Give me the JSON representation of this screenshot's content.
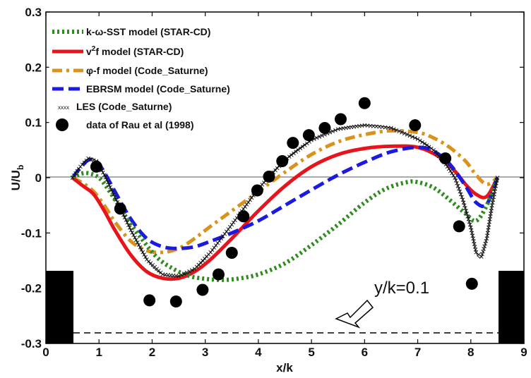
{
  "chart_data": {
    "type": "line",
    "xlabel": "x/k",
    "ylabel": "U/U",
    "ylabel_sub": "b",
    "xlim": [
      0,
      9
    ],
    "ylim": [
      -0.3,
      0.3
    ],
    "xticks": [
      "0",
      "1",
      "2",
      "3",
      "4",
      "5",
      "6",
      "7",
      "8",
      "9"
    ],
    "yticks": [
      "-0.3",
      "-0.2",
      "-0.1",
      "0",
      "0.1",
      "0.2",
      "0.3"
    ],
    "grid": false,
    "legend_position": "top-left",
    "annotation": "y/k=0.1",
    "series": [
      {
        "name": "k-ω-SST model (STAR-CD)",
        "style": "dotted",
        "color": "#2e8b1e",
        "x": [
          0.5,
          0.65,
          0.8,
          1.0,
          1.2,
          1.5,
          1.8,
          2.1,
          2.4,
          2.7,
          3.0,
          3.3,
          3.6,
          4.0,
          4.5,
          5.0,
          5.5,
          6.0,
          6.4,
          6.8,
          7.0,
          7.3,
          7.6,
          7.9,
          8.1,
          8.3,
          8.5
        ],
        "y": [
          0.0,
          0.007,
          0.008,
          0.0,
          -0.025,
          -0.07,
          -0.11,
          -0.145,
          -0.165,
          -0.178,
          -0.183,
          -0.185,
          -0.183,
          -0.175,
          -0.155,
          -0.122,
          -0.085,
          -0.045,
          -0.02,
          -0.008,
          -0.008,
          -0.018,
          -0.04,
          -0.065,
          -0.078,
          -0.05,
          0.0
        ]
      },
      {
        "name": "v²f model (STAR-CD)",
        "name_base": "v",
        "name_sup": "2",
        "name_rest": "f model (STAR-CD)",
        "style": "solid",
        "color": "#e8141b",
        "x": [
          0.5,
          0.7,
          0.9,
          1.1,
          1.3,
          1.6,
          1.9,
          2.2,
          2.5,
          2.8,
          3.1,
          3.5,
          4.0,
          4.5,
          5.0,
          5.5,
          6.0,
          6.5,
          7.0,
          7.4,
          7.7,
          7.9,
          8.1,
          8.3,
          8.5
        ],
        "y": [
          0.0,
          -0.015,
          -0.03,
          -0.06,
          -0.095,
          -0.14,
          -0.17,
          -0.182,
          -0.182,
          -0.17,
          -0.148,
          -0.11,
          -0.06,
          -0.015,
          0.02,
          0.042,
          0.053,
          0.057,
          0.055,
          0.038,
          0.012,
          -0.012,
          -0.03,
          -0.034,
          0.0
        ]
      },
      {
        "name": "φ-f model (Code_Saturne)",
        "style": "dashdot",
        "color": "#d9921e",
        "x": [
          0.5,
          0.7,
          0.9,
          1.1,
          1.3,
          1.6,
          1.9,
          2.2,
          2.5,
          2.8,
          3.1,
          3.5,
          4.0,
          4.5,
          5.0,
          5.5,
          6.0,
          6.5,
          7.0,
          7.3,
          7.6,
          7.9,
          8.1,
          8.3,
          8.5
        ],
        "y": [
          0.0,
          -0.01,
          -0.025,
          -0.05,
          -0.08,
          -0.115,
          -0.132,
          -0.135,
          -0.128,
          -0.11,
          -0.088,
          -0.06,
          -0.025,
          0.01,
          0.042,
          0.065,
          0.078,
          0.085,
          0.082,
          0.072,
          0.055,
          0.03,
          0.005,
          -0.012,
          0.0
        ]
      },
      {
        "name": "EBRSM model (Code_Saturne)",
        "style": "dashed",
        "color": "#1a1ae0",
        "x": [
          0.5,
          0.65,
          0.8,
          0.95,
          1.1,
          1.3,
          1.6,
          1.9,
          2.2,
          2.5,
          2.8,
          3.1,
          3.5,
          4.0,
          4.5,
          5.0,
          5.5,
          6.0,
          6.5,
          7.0,
          7.3,
          7.6,
          7.9,
          8.1,
          8.3,
          8.5
        ],
        "y": [
          0.0,
          0.018,
          0.032,
          0.03,
          0.01,
          -0.025,
          -0.075,
          -0.11,
          -0.125,
          -0.128,
          -0.125,
          -0.115,
          -0.1,
          -0.078,
          -0.05,
          -0.022,
          0.005,
          0.028,
          0.047,
          0.055,
          0.048,
          0.025,
          -0.015,
          -0.045,
          -0.048,
          0.0
        ]
      },
      {
        "name": "LES (Code_Saturne)",
        "legend_marker": "xxxx",
        "style": "crosses",
        "color": "#111111",
        "x": [
          0.5,
          0.65,
          0.8,
          0.95,
          1.1,
          1.3,
          1.6,
          1.9,
          2.2,
          2.5,
          2.8,
          3.1,
          3.5,
          4.0,
          4.5,
          5.0,
          5.5,
          6.0,
          6.5,
          7.0,
          7.3,
          7.5,
          7.7,
          7.85,
          8.0,
          8.1,
          8.2,
          8.3,
          8.4,
          8.5
        ],
        "y": [
          0.0,
          0.02,
          0.035,
          0.03,
          0.005,
          -0.035,
          -0.095,
          -0.148,
          -0.175,
          -0.178,
          -0.165,
          -0.135,
          -0.085,
          -0.02,
          0.032,
          0.068,
          0.088,
          0.095,
          0.09,
          0.07,
          0.05,
          0.028,
          0.0,
          -0.04,
          -0.09,
          -0.135,
          -0.143,
          -0.11,
          -0.05,
          0.0
        ]
      },
      {
        "name": "data of Rau et al (1998)",
        "style": "markers",
        "color": "#000000",
        "x": [
          0.95,
          1.4,
          1.95,
          2.45,
          2.95,
          3.25,
          3.5,
          3.72,
          3.98,
          4.2,
          4.45,
          4.65,
          4.95,
          5.25,
          5.55,
          6.0,
          6.95,
          7.52,
          7.78,
          8.02
        ],
        "y": [
          0.02,
          -0.056,
          -0.222,
          -0.224,
          -0.203,
          -0.175,
          -0.136,
          -0.07,
          -0.023,
          0.002,
          0.03,
          0.063,
          0.077,
          0.09,
          0.106,
          0.135,
          0.095,
          0.035,
          -0.088,
          -0.192
        ]
      }
    ]
  }
}
